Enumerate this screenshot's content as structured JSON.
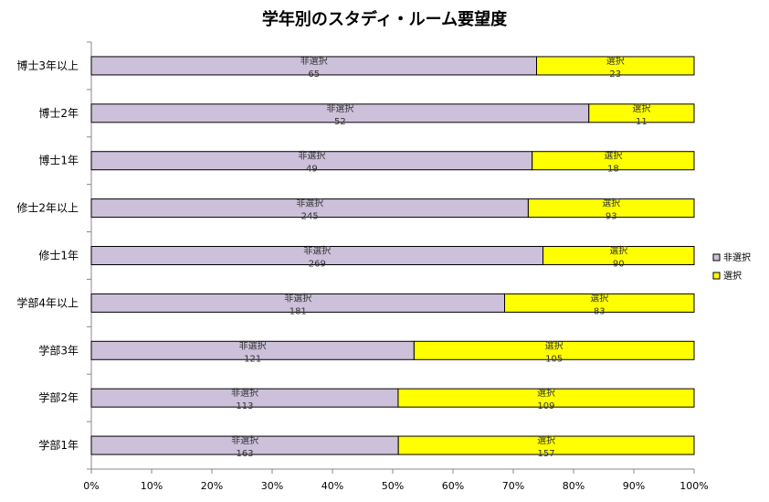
{
  "chart_data": {
    "type": "bar",
    "orientation": "horizontal",
    "stacked": "percent",
    "title": "学年別のスタディ・ルーム要望度",
    "categories": [
      "博士3年以上",
      "博士2年",
      "博士1年",
      "修士2年以上",
      "修士1年",
      "学部4年以上",
      "学部3年",
      "学部2年",
      "学部1年"
    ],
    "series": [
      {
        "name": "非選択",
        "color": "#ccc0da",
        "values": [
          65,
          52,
          49,
          245,
          269,
          181,
          121,
          113,
          163
        ]
      },
      {
        "name": "選択",
        "color": "#ffff00",
        "values": [
          23,
          11,
          18,
          93,
          90,
          83,
          105,
          109,
          157
        ]
      }
    ],
    "xticks": [
      "0%",
      "10%",
      "20%",
      "30%",
      "40%",
      "50%",
      "60%",
      "70%",
      "80%",
      "90%",
      "100%"
    ],
    "xlim": [
      0,
      100
    ],
    "grid": false,
    "legend": "right"
  }
}
